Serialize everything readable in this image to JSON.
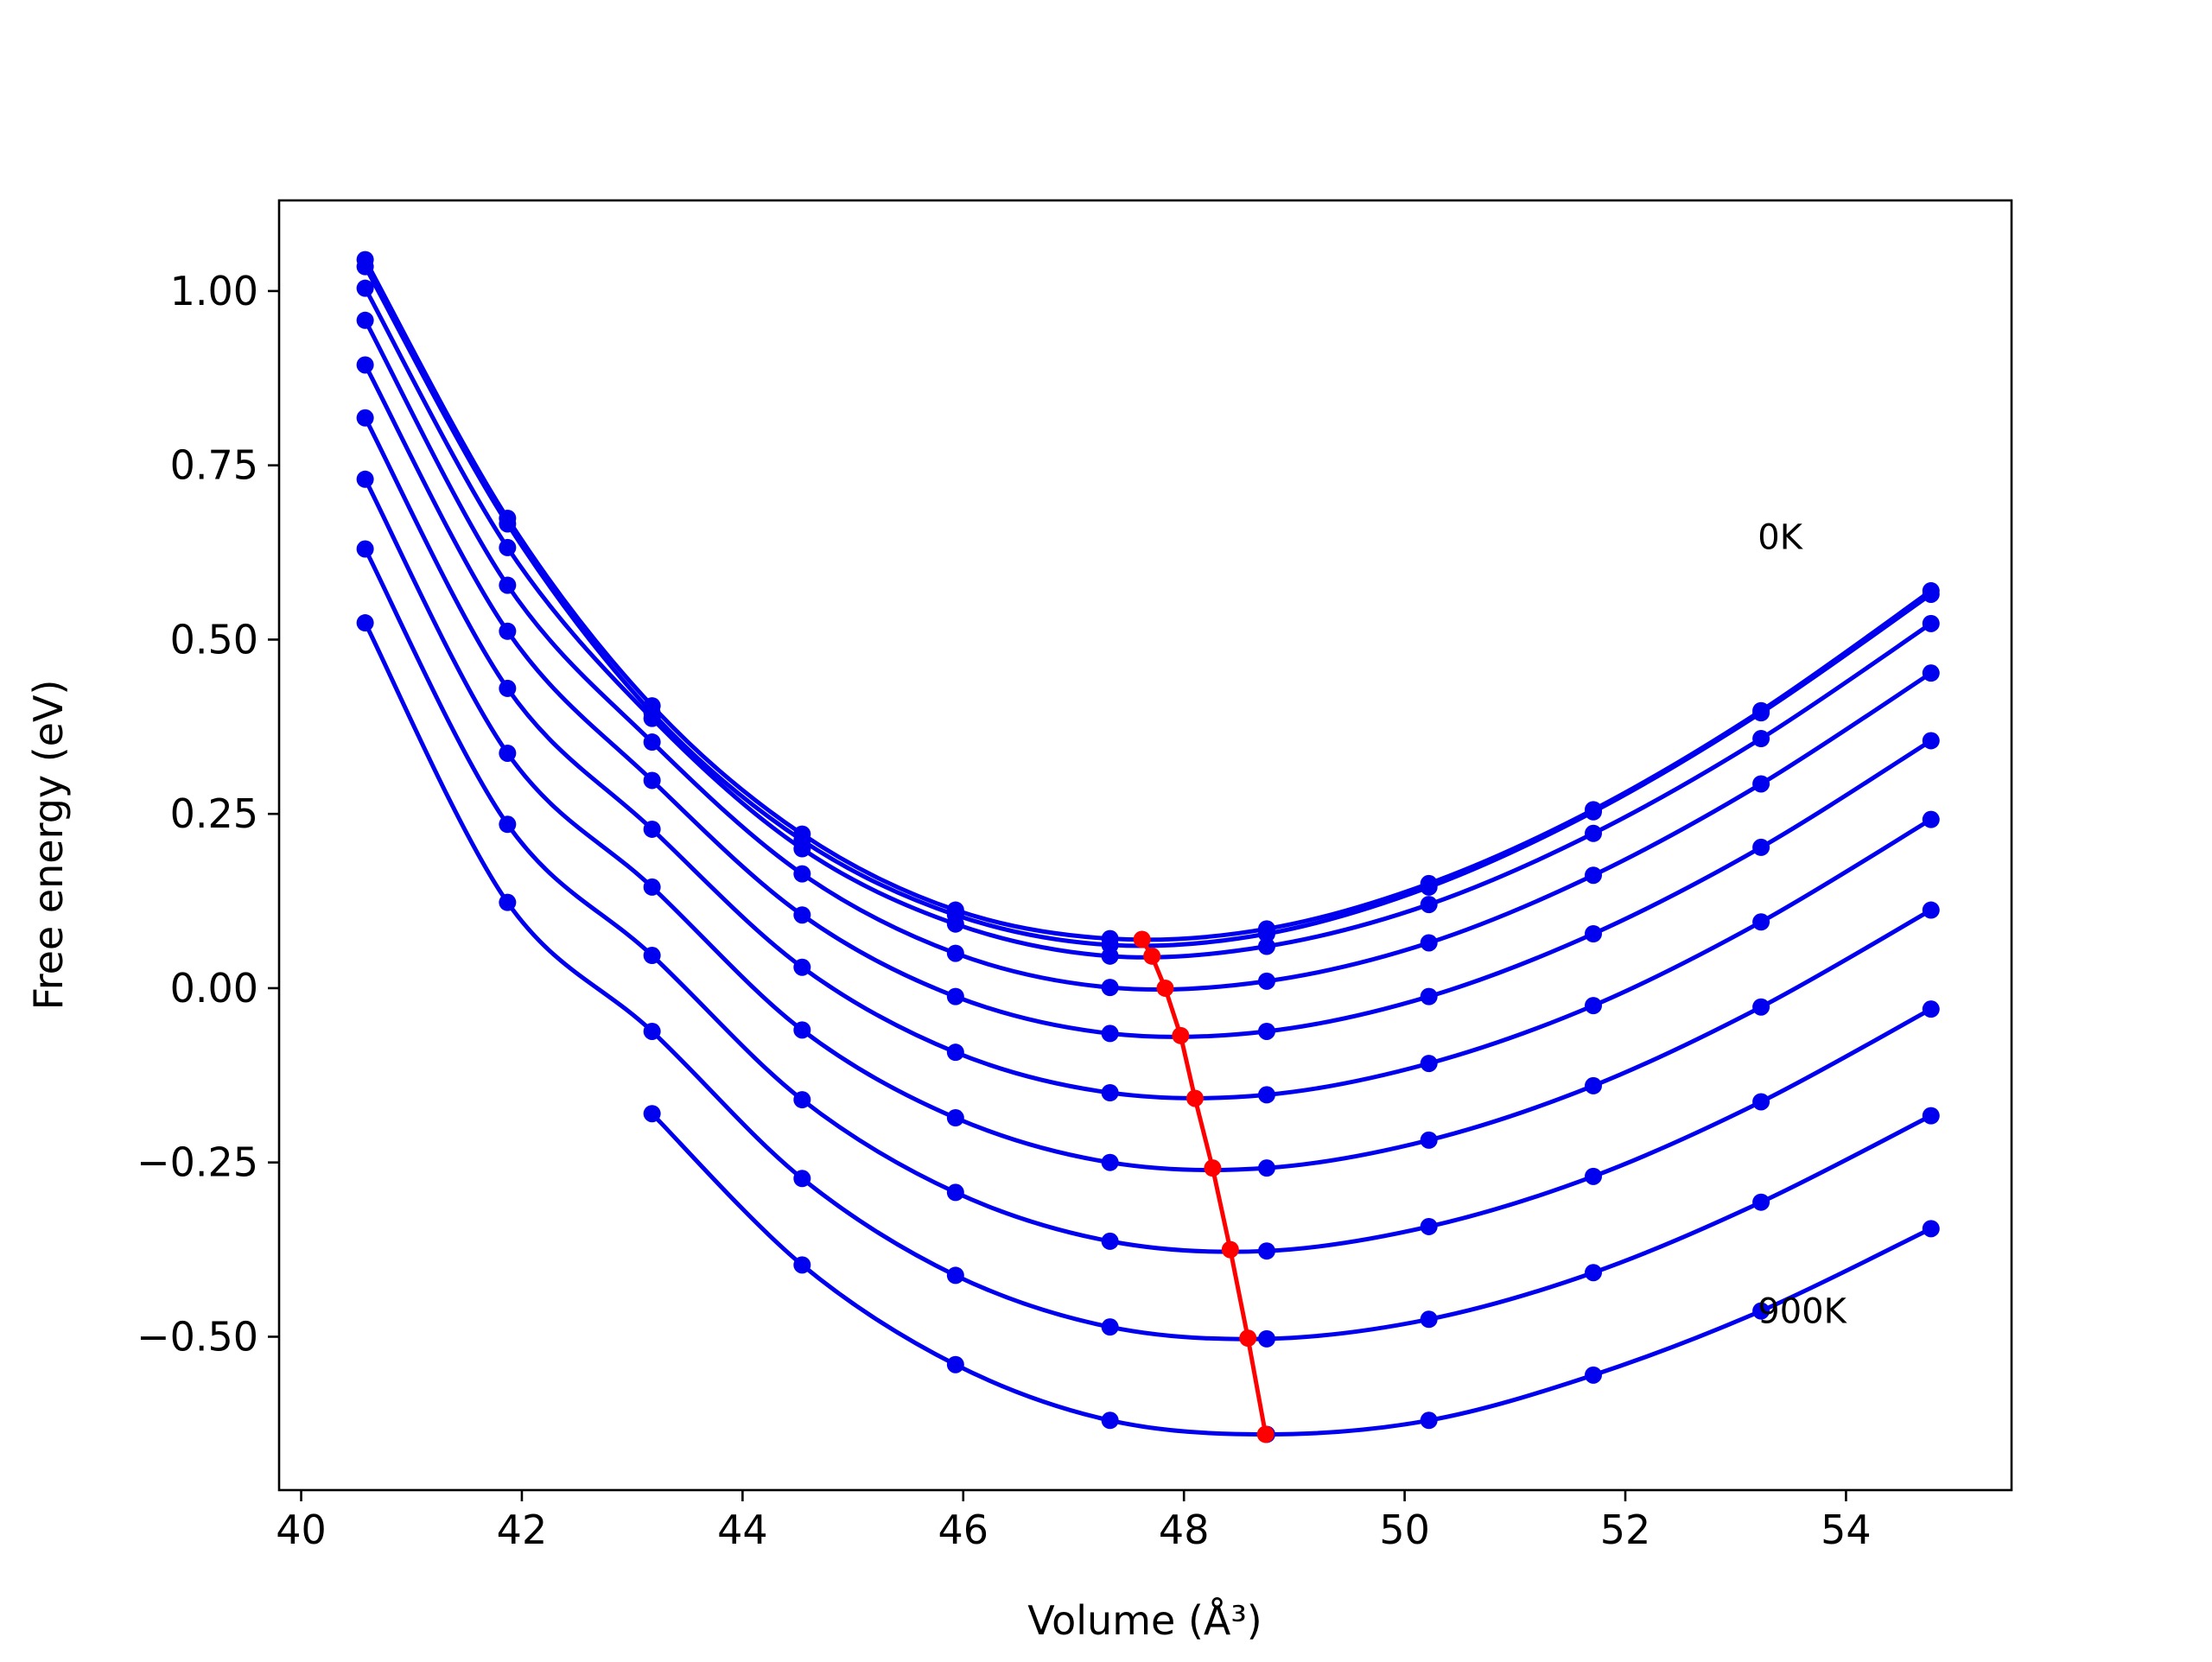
{
  "chart_data": {
    "type": "line",
    "xlabel": "Volume (Å³)",
    "ylabel": "Free energy (eV)",
    "xlim": [
      39.8,
      55.5
    ],
    "ylim": [
      -0.72,
      1.13
    ],
    "x_ticks": [
      40,
      42,
      44,
      46,
      48,
      50,
      52,
      54
    ],
    "x_tick_labels": [
      "40",
      "42",
      "44",
      "46",
      "48",
      "50",
      "52",
      "54"
    ],
    "y_ticks": [
      1.0,
      0.75,
      0.5,
      0.25,
      0.0,
      -0.25,
      -0.5
    ],
    "y_tick_labels": [
      "1.00",
      "0.75",
      "0.50",
      "0.25",
      "0.00",
      "−0.25",
      "−0.50"
    ],
    "grid": false,
    "annotations": [
      {
        "text": "0K",
        "x": 53.2,
        "y": 0.63
      },
      {
        "text": "900K",
        "x": 53.2,
        "y": -0.48
      }
    ],
    "x": [
      40.58,
      41.87,
      43.18,
      44.54,
      45.93,
      47.33,
      48.75,
      50.22,
      51.71,
      53.23,
      54.77
    ],
    "series": [
      {
        "color": "#0000ee",
        "values": [
          1.045,
          0.674,
          0.405,
          0.221,
          0.112,
          0.071,
          0.085,
          0.15,
          0.256,
          0.398,
          0.57
        ]
      },
      {
        "color": "#0000ee",
        "values": [
          1.035,
          0.666,
          0.395,
          0.212,
          0.105,
          0.062,
          0.078,
          0.145,
          0.253,
          0.395,
          0.565
        ]
      },
      {
        "color": "#0000ee",
        "values": [
          1.004,
          0.632,
          0.387,
          0.2,
          0.092,
          0.046,
          0.06,
          0.12,
          0.222,
          0.358,
          0.523
        ]
      },
      {
        "color": "#0000ee",
        "values": [
          0.958,
          0.578,
          0.353,
          0.164,
          0.05,
          0.001,
          0.01,
          0.065,
          0.162,
          0.293,
          0.452
        ]
      },
      {
        "color": "#0000ee",
        "values": [
          0.894,
          0.512,
          0.298,
          0.105,
          -0.012,
          -0.065,
          -0.062,
          -0.012,
          0.078,
          0.202,
          0.355
        ]
      },
      {
        "color": "#0000ee",
        "values": [
          0.818,
          0.43,
          0.228,
          0.03,
          -0.092,
          -0.15,
          -0.153,
          -0.108,
          -0.025,
          0.095,
          0.242
        ]
      },
      {
        "color": "#0000ee",
        "values": [
          0.73,
          0.337,
          0.145,
          -0.06,
          -0.186,
          -0.25,
          -0.258,
          -0.218,
          -0.14,
          -0.027,
          0.112
        ]
      },
      {
        "color": "#0000ee",
        "values": [
          0.63,
          0.235,
          0.047,
          -0.16,
          -0.293,
          -0.363,
          -0.377,
          -0.342,
          -0.27,
          -0.163,
          -0.03
        ]
      },
      {
        "color": "#0000ee",
        "values": [
          0.524,
          0.123,
          -0.062,
          -0.273,
          -0.412,
          -0.486,
          -0.503,
          -0.475,
          -0.408,
          -0.307,
          -0.183
        ]
      },
      {
        "color": "#0000ee",
        "values": [
          null,
          null,
          -0.18,
          -0.397,
          -0.54,
          -0.62,
          -0.64,
          -0.62,
          -0.555,
          -0.463,
          -0.345
        ]
      }
    ],
    "minima": {
      "color": "#ff0000",
      "x": [
        47.62,
        47.71,
        47.83,
        47.97,
        48.1,
        48.26,
        48.42,
        48.58,
        48.74
      ],
      "y": [
        0.07,
        0.046,
        0.0,
        -0.068,
        -0.158,
        -0.258,
        -0.375,
        -0.502,
        -0.64
      ]
    }
  }
}
